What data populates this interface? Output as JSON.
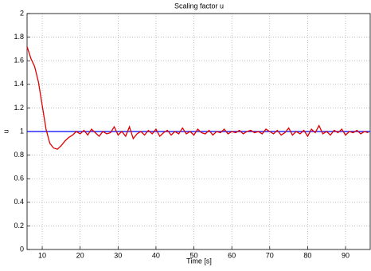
{
  "chart_data": {
    "type": "line",
    "title": "Scaling factor u",
    "xlabel": "Time [s]",
    "ylabel": "u",
    "xlim": [
      6,
      96.5
    ],
    "ylim": [
      0,
      2
    ],
    "xticks": [
      10,
      20,
      30,
      40,
      50,
      60,
      70,
      80,
      90
    ],
    "yticks": [
      0,
      0.2,
      0.4,
      0.6,
      0.8,
      1,
      1.2,
      1.4,
      1.6,
      1.8,
      2
    ],
    "grid": true,
    "series": [
      {
        "color": "#e00000",
        "x": [
          6,
          7,
          8,
          9,
          10,
          11,
          12,
          13,
          14,
          15,
          16,
          17,
          18,
          19,
          20,
          21,
          22,
          23,
          24,
          25,
          26,
          27,
          28,
          29,
          30,
          31,
          32,
          33,
          34,
          35,
          36,
          37,
          38,
          39,
          40,
          41,
          42,
          43,
          44,
          45,
          46,
          47,
          48,
          49,
          50,
          51,
          52,
          53,
          54,
          55,
          56,
          57,
          58,
          59,
          60,
          61,
          62,
          63,
          64,
          65,
          66,
          67,
          68,
          69,
          70,
          71,
          72,
          73,
          74,
          75,
          76,
          77,
          78,
          79,
          80,
          81,
          82,
          83,
          84,
          85,
          86,
          87,
          88,
          89,
          90,
          91,
          92,
          93,
          94,
          95,
          96
        ],
        "values": [
          1.72,
          1.62,
          1.55,
          1.42,
          1.22,
          1.02,
          0.9,
          0.86,
          0.85,
          0.88,
          0.92,
          0.95,
          0.97,
          1.0,
          0.98,
          1.01,
          0.97,
          1.02,
          0.99,
          0.96,
          1.0,
          0.98,
          0.99,
          1.04,
          0.97,
          1.0,
          0.96,
          1.04,
          0.94,
          0.98,
          1.0,
          0.97,
          1.01,
          0.98,
          1.02,
          0.96,
          0.99,
          1.01,
          0.97,
          1.0,
          0.98,
          1.03,
          0.98,
          1.0,
          0.97,
          1.02,
          0.99,
          0.98,
          1.01,
          0.97,
          1.0,
          0.99,
          1.02,
          0.98,
          1.0,
          0.99,
          1.01,
          0.98,
          1.0,
          1.01,
          0.99,
          1.0,
          0.98,
          1.02,
          1.0,
          0.98,
          1.01,
          0.97,
          0.99,
          1.03,
          0.97,
          1.0,
          0.98,
          1.01,
          0.96,
          1.02,
          0.99,
          1.05,
          0.98,
          1.0,
          0.97,
          1.01,
          0.99,
          1.02,
          0.97,
          1.0,
          0.99,
          1.01,
          0.98,
          1.0,
          0.99
        ]
      },
      {
        "color": "#0000ff",
        "x": [
          6,
          96.5
        ],
        "values": [
          1,
          1
        ]
      }
    ]
  }
}
